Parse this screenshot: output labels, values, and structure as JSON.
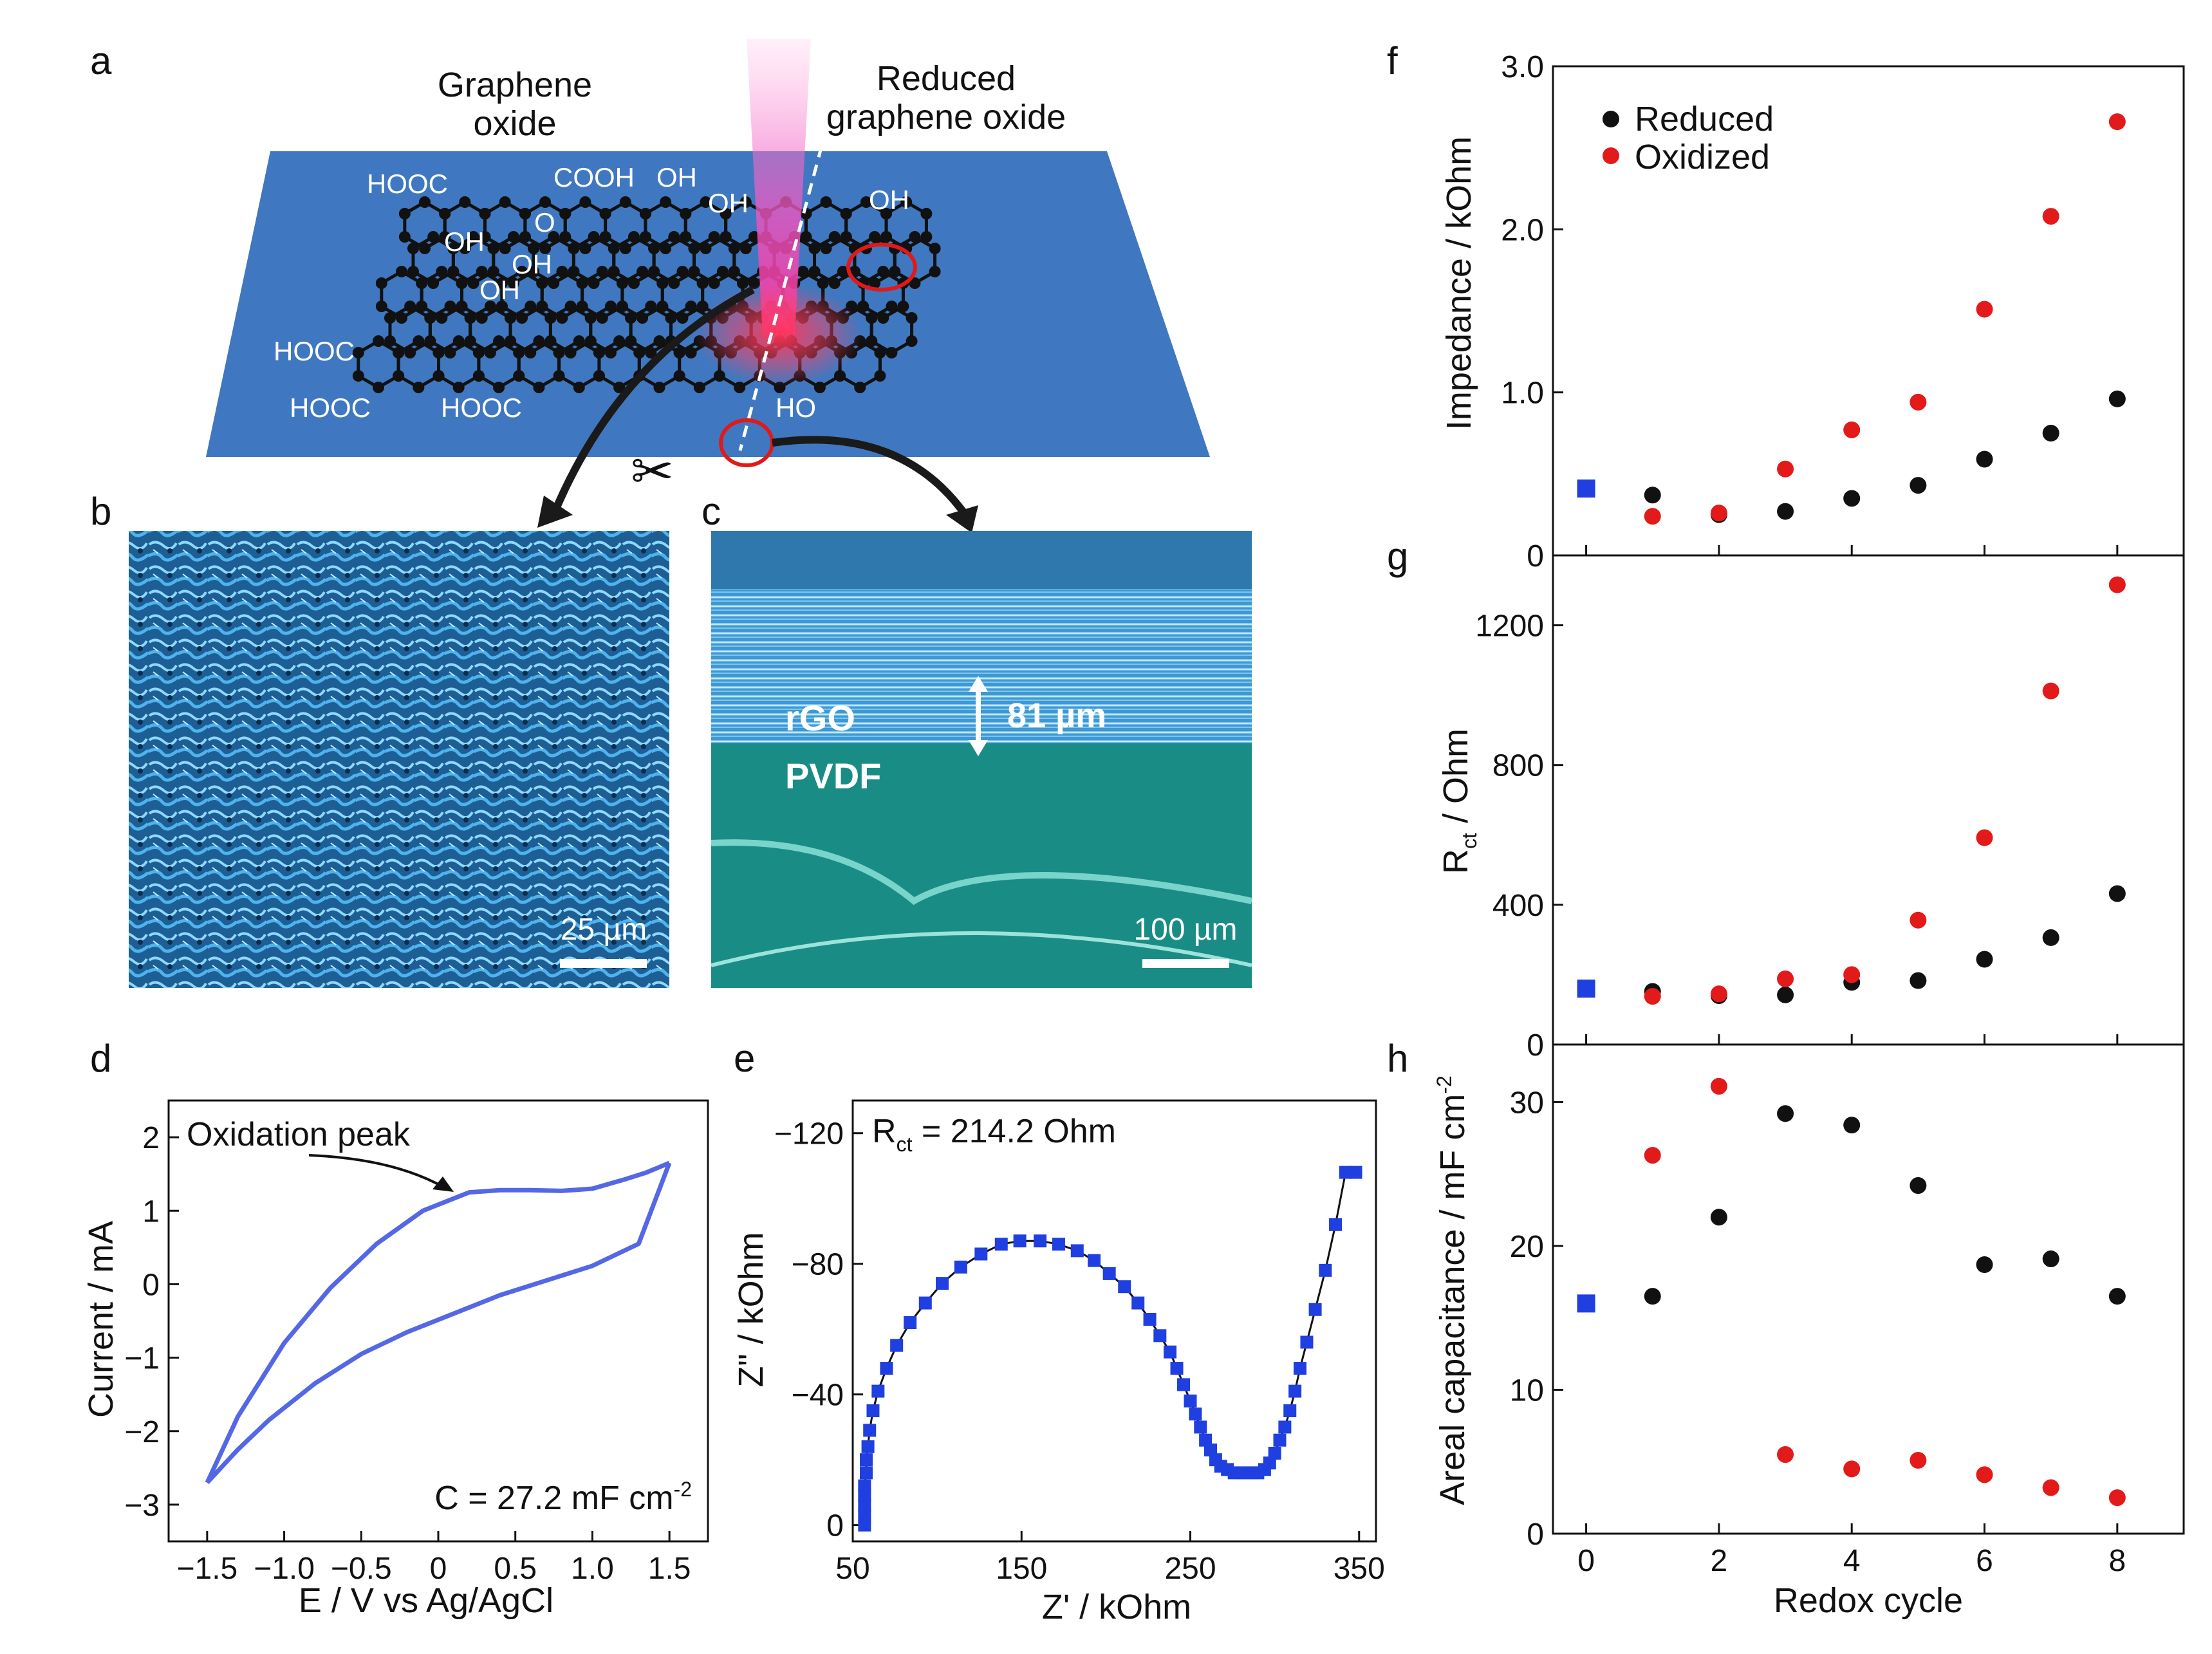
{
  "panel_letters": {
    "a": "a",
    "b": "b",
    "c": "c",
    "d": "d",
    "e": "e",
    "f": "f",
    "g": "g",
    "h": "h"
  },
  "schematic": {
    "go_label": [
      "Graphene",
      "oxide"
    ],
    "rgo_label": [
      "Reduced",
      "graphene oxide"
    ],
    "groups": [
      "HOOC",
      "COOH",
      "OH",
      "OH",
      "O",
      "OH",
      "OH",
      "OH",
      "OH",
      "HOOC",
      "HOOC",
      "HOOC",
      "HO"
    ],
    "colors": {
      "substrate": "#3f78c0",
      "laser": "#e75aa8",
      "atom": "#111111"
    }
  },
  "micrographs": {
    "b_scale": "25 µm",
    "c_scale": "100 µm",
    "c_layer_top": "rGO",
    "c_layer_bottom": "PVDF",
    "c_thickness": "81 µm",
    "colors": {
      "sem_blue": "#2f8fcf",
      "sem_teal": "#1a8c86"
    }
  },
  "chart_data": [
    {
      "panel": "d",
      "type": "line",
      "xlabel": "E / V vs Ag/AgCl",
      "ylabel": "Current / mA",
      "xlim": [
        -1.75,
        1.75
      ],
      "ylim": [
        -3.5,
        2.5
      ],
      "xticks": [
        -1.5,
        -1.0,
        -0.5,
        0,
        0.5,
        1.0,
        1.5
      ],
      "xtick_labels": [
        "−1.5",
        "−1.0",
        "−0.5",
        "0",
        "0.5",
        "1.0",
        "1.5"
      ],
      "yticks": [
        -3,
        -2,
        -1,
        0,
        1,
        2
      ],
      "ytick_labels": [
        "−3",
        "−2",
        "−1",
        "0",
        "1",
        "2"
      ],
      "annotation": "Oxidation peak",
      "note": "C = 27.2 mF cm",
      "note_sup": "-2",
      "color": "#5468e6",
      "series": [
        {
          "x": [
            -1.5,
            -1.3,
            -1.0,
            -0.7,
            -0.4,
            -0.1,
            0.2,
            0.4,
            0.6,
            0.8,
            1.0,
            1.2,
            1.35,
            1.5
          ],
          "y": [
            -2.7,
            -1.8,
            -0.8,
            -0.05,
            0.55,
            1.0,
            1.25,
            1.28,
            1.28,
            1.27,
            1.3,
            1.42,
            1.52,
            1.65
          ]
        },
        {
          "x": [
            1.5,
            1.3,
            1.0,
            0.7,
            0.4,
            0.1,
            -0.2,
            -0.5,
            -0.8,
            -1.1,
            -1.3,
            -1.5
          ],
          "y": [
            1.65,
            0.55,
            0.25,
            0.05,
            -0.15,
            -0.4,
            -0.65,
            -0.95,
            -1.35,
            -1.85,
            -2.25,
            -2.7
          ]
        }
      ]
    },
    {
      "panel": "e",
      "type": "scatter",
      "xlabel": "Z' / kOhm",
      "ylabel": "Z\" / kOhm",
      "xlim": [
        50,
        360
      ],
      "ylim": [
        5,
        -130
      ],
      "xticks": [
        50,
        150,
        250,
        350
      ],
      "xtick_labels": [
        "50",
        "150",
        "250",
        "350"
      ],
      "yticks": [
        0,
        -40,
        -80,
        -120
      ],
      "ytick_labels": [
        "0",
        "−40",
        "−80",
        "−120"
      ],
      "note": "R",
      "note_sub": "ct",
      "note_tail": " = 214.2 Ohm",
      "color": "#1f3fe0",
      "x": [
        57,
        57,
        57,
        57,
        57,
        58,
        58,
        59,
        60,
        62,
        65,
        70,
        76,
        84,
        93,
        103,
        114,
        126,
        138,
        149,
        161,
        172,
        183,
        193,
        202,
        211,
        219,
        226,
        232,
        238,
        242,
        246,
        250,
        253,
        256,
        259,
        262,
        265,
        268,
        272,
        276,
        281,
        286,
        290,
        294,
        297,
        300,
        303,
        306,
        309,
        312,
        315,
        319,
        324,
        330,
        336,
        342,
        348
      ],
      "y": [
        0,
        -3,
        -6,
        -9,
        -12,
        -16,
        -20,
        -24,
        -29,
        -35,
        -41,
        -48,
        -55,
        -62,
        -68,
        -74,
        -79,
        -83,
        -86,
        -87,
        -87,
        -86,
        -84,
        -81,
        -77,
        -73,
        -68,
        -63,
        -58,
        -53,
        -48,
        -43,
        -38,
        -34,
        -30,
        -26,
        -23,
        -20,
        -18,
        -17,
        -16,
        -16,
        -16,
        -16,
        -17,
        -19,
        -22,
        -26,
        -30,
        -35,
        -41,
        -48,
        -56,
        -66,
        -78,
        -92,
        -108,
        -108
      ]
    },
    {
      "panel": "f",
      "type": "scatter",
      "ylabel": "Impedance / kOhm",
      "xlim": [
        -0.5,
        9
      ],
      "ylim": [
        0,
        3
      ],
      "yticks": [
        0,
        1,
        2,
        3
      ],
      "ytick_labels": [
        "0",
        "1.0",
        "2.0",
        "3.0"
      ],
      "legend_placement": "top-left",
      "series": [
        {
          "name": "Reduced",
          "color": "#111111",
          "x": [
            1,
            2,
            3,
            4,
            5,
            6,
            7,
            8
          ],
          "y": [
            0.37,
            0.25,
            0.27,
            0.35,
            0.43,
            0.59,
            0.75,
            0.96
          ]
        },
        {
          "name": "Oxidized",
          "color": "#e31a1a",
          "x": [
            1,
            2,
            3,
            4,
            5,
            6,
            7,
            8
          ],
          "y": [
            0.24,
            0.26,
            0.53,
            0.77,
            0.94,
            1.51,
            2.08,
            2.66
          ]
        },
        {
          "name": "",
          "color": "#1f3fe0",
          "marker": "square",
          "x": [
            0
          ],
          "y": [
            0.41
          ]
        }
      ]
    },
    {
      "panel": "g",
      "type": "scatter",
      "ylabel": "R",
      "ylabel_sub": "ct",
      "ylabel_tail": " / Ohm",
      "xlim": [
        -0.5,
        9
      ],
      "ylim": [
        0,
        1400
      ],
      "yticks": [
        0,
        400,
        800,
        1200
      ],
      "ytick_labels": [
        "0",
        "400",
        "800",
        "1200"
      ],
      "series": [
        {
          "name": "Reduced",
          "color": "#111111",
          "x": [
            1,
            2,
            3,
            4,
            5,
            6,
            7,
            8
          ],
          "y": [
            152,
            140,
            142,
            178,
            183,
            244,
            306,
            432
          ]
        },
        {
          "name": "Oxidized",
          "color": "#e31a1a",
          "x": [
            1,
            2,
            3,
            4,
            5,
            6,
            7,
            8
          ],
          "y": [
            138,
            145,
            188,
            200,
            356,
            592,
            1012,
            1316
          ]
        },
        {
          "name": "",
          "color": "#1f3fe0",
          "marker": "square",
          "x": [
            0
          ],
          "y": [
            160
          ]
        }
      ]
    },
    {
      "panel": "h",
      "type": "scatter",
      "xlabel": "Redox cycle",
      "ylabel": "Areal capacitance / mF cm",
      "ylabel_sup": "-2",
      "xlim": [
        -0.5,
        9
      ],
      "ylim": [
        0,
        34
      ],
      "xticks": [
        0,
        2,
        4,
        6,
        8
      ],
      "xtick_labels": [
        "0",
        "2",
        "4",
        "6",
        "8"
      ],
      "yticks": [
        0,
        10,
        20,
        30
      ],
      "ytick_labels": [
        "0",
        "10",
        "20",
        "30"
      ],
      "series": [
        {
          "name": "Reduced",
          "color": "#111111",
          "x": [
            1,
            2,
            3,
            4,
            5,
            6,
            7,
            8
          ],
          "y": [
            16.5,
            22,
            29.2,
            28.4,
            24.2,
            18.7,
            19.1,
            16.5
          ]
        },
        {
          "name": "Oxidized",
          "color": "#e31a1a",
          "x": [
            1,
            2,
            3,
            4,
            5,
            6,
            7,
            8
          ],
          "y": [
            26.3,
            31.1,
            5.5,
            4.5,
            5.1,
            4.1,
            3.2,
            2.5
          ]
        },
        {
          "name": "",
          "color": "#1f3fe0",
          "marker": "square",
          "x": [
            0
          ],
          "y": [
            16
          ]
        }
      ]
    }
  ]
}
